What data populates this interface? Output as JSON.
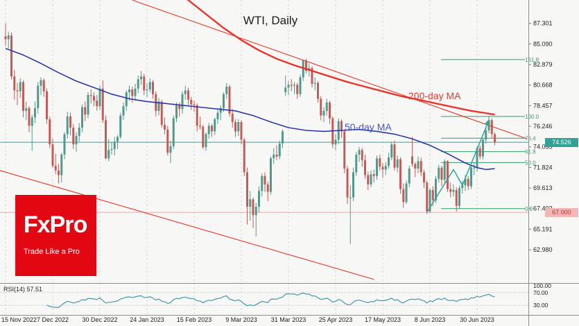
{
  "title": "WTI, Daily",
  "labels": {
    "ma200": "200-day MA",
    "ma50": "50-day MA",
    "rsi": "RSI(14) 57.51"
  },
  "watermark": {
    "brand": "FxPro",
    "tagline": "Trade Like a Pro"
  },
  "badges": {
    "current_price": "74.526",
    "support_price": "67.000"
  },
  "colors": {
    "background": "#f7f7f5",
    "grid": "#d8d8d8",
    "bull": "#4f9a8c",
    "bear": "#c65a57",
    "ma200": "#e8342a",
    "ma50": "#2c38a8",
    "ma50_label": "#4752c4",
    "fib": "#2f9f63",
    "trend": "#e8342a",
    "accent_teal": "#2aa79b",
    "support_line": "#f0a6a6",
    "rsi": "#4596a8",
    "brand_red": "#e30613",
    "axis_text": "#222222"
  },
  "chart_data": {
    "type": "candlestick",
    "title": "WTI, Daily",
    "symbol": "WTI",
    "timeframe": "Daily",
    "price_tick_labels": [
      "87.301",
      "85.090",
      "82.879",
      "80.668",
      "78.457",
      "76.246",
      "74.035",
      "71.824",
      "69.613",
      "67.402",
      "65.191",
      "62.980"
    ],
    "date_tick_labels": [
      "15 Nov 2022",
      "7 Dec 2022",
      "30 Dec 2022",
      "24 Jan 2023",
      "15 Feb 2023",
      "9 Mar 2023",
      "31 Mar 2023",
      "25 Apr 2023",
      "17 May 2023",
      "8 Jun 2023",
      "30 Jun 2023"
    ],
    "tick_indices": [
      0,
      16,
      32,
      48,
      64,
      80,
      96,
      112,
      128,
      144,
      160
    ],
    "price_range": [
      59.41,
      89.81
    ],
    "current_price": 74.526,
    "support_level": 67.0,
    "fib_levels": [
      {
        "label": "161.8",
        "price": 83.41
      },
      {
        "label": "100.0",
        "price": 77.3
      },
      {
        "label": "76.4",
        "price": 74.96
      },
      {
        "label": "61.8",
        "price": 73.52
      },
      {
        "label": "50.0",
        "price": 72.35
      },
      {
        "label": "0.0",
        "price": 67.4
      }
    ],
    "trendlines": [
      {
        "from": [
          43,
          89.8
        ],
        "to": [
          177,
          74.9
        ]
      },
      {
        "from": [
          -2,
          71.5
        ],
        "to": [
          125,
          59.8
        ]
      }
    ],
    "impulse_line": [
      [
        143,
        67.0
      ],
      [
        152,
        71.6
      ],
      [
        155,
        69.9
      ],
      [
        164,
        76.9
      ]
    ],
    "ma200": [
      [
        56,
        91.2
      ],
      [
        62,
        89.8
      ],
      [
        68,
        88.3
      ],
      [
        74,
        86.8
      ],
      [
        80,
        85.5
      ],
      [
        86,
        84.4
      ],
      [
        92,
        83.5
      ],
      [
        98,
        82.8
      ],
      [
        104,
        82.2
      ],
      [
        110,
        81.6
      ],
      [
        116,
        81.0
      ],
      [
        122,
        80.5
      ],
      [
        128,
        80.0
      ],
      [
        134,
        79.5
      ],
      [
        140,
        79.1
      ],
      [
        146,
        78.7
      ],
      [
        152,
        78.3
      ],
      [
        158,
        77.9
      ],
      [
        162,
        77.7
      ],
      [
        166,
        77.5
      ]
    ],
    "ma50": [
      [
        0,
        84.6
      ],
      [
        6,
        83.9
      ],
      [
        12,
        83.0
      ],
      [
        18,
        82.0
      ],
      [
        24,
        81.1
      ],
      [
        30,
        80.4
      ],
      [
        36,
        79.7
      ],
      [
        42,
        79.2
      ],
      [
        48,
        78.9
      ],
      [
        54,
        78.7
      ],
      [
        60,
        78.5
      ],
      [
        66,
        78.3
      ],
      [
        72,
        78.1
      ],
      [
        78,
        77.9
      ],
      [
        84,
        77.4
      ],
      [
        90,
        76.7
      ],
      [
        96,
        76.1
      ],
      [
        102,
        75.8
      ],
      [
        108,
        75.7
      ],
      [
        114,
        75.8
      ],
      [
        120,
        75.9
      ],
      [
        126,
        75.7
      ],
      [
        132,
        75.4
      ],
      [
        138,
        74.9
      ],
      [
        144,
        74.2
      ],
      [
        150,
        73.3
      ],
      [
        156,
        72.3
      ],
      [
        160,
        71.8
      ],
      [
        163,
        71.6
      ],
      [
        166,
        71.7
      ]
    ],
    "rsi": {
      "indicator": "RSI(14)",
      "value": 57.51,
      "levels": [
        70,
        30
      ],
      "axis_labels": [
        "100.00",
        "70.00",
        "30.00"
      ]
    },
    "candles": [
      [
        85.9,
        87.3,
        84.9,
        85.6
      ],
      [
        85.6,
        86.4,
        84.6,
        86.0
      ],
      [
        86.0,
        86.3,
        81.3,
        81.6
      ],
      [
        81.6,
        82.3,
        79.1,
        80.1
      ],
      [
        80.1,
        80.9,
        78.5,
        80.0
      ],
      [
        80.0,
        81.4,
        79.3,
        81.0
      ],
      [
        81.0,
        81.2,
        77.2,
        77.9
      ],
      [
        77.9,
        78.9,
        76.9,
        78.2
      ],
      [
        78.2,
        78.4,
        75.6,
        76.3
      ],
      [
        76.3,
        77.5,
        73.6,
        77.2
      ],
      [
        77.2,
        78.9,
        76.6,
        78.2
      ],
      [
        78.2,
        81.0,
        77.6,
        80.6
      ],
      [
        80.6,
        81.5,
        79.6,
        81.2
      ],
      [
        81.2,
        81.4,
        79.4,
        80.0
      ],
      [
        80.0,
        80.3,
        76.5,
        77.0
      ],
      [
        77.0,
        77.3,
        73.9,
        74.3
      ],
      [
        74.3,
        74.9,
        71.8,
        72.0
      ],
      [
        72.0,
        73.3,
        71.1,
        71.5
      ],
      [
        71.5,
        72.2,
        70.1,
        71.0
      ],
      [
        71.0,
        73.4,
        70.2,
        73.2
      ],
      [
        73.2,
        75.6,
        72.7,
        75.4
      ],
      [
        75.4,
        77.8,
        74.9,
        77.3
      ],
      [
        77.3,
        77.7,
        75.3,
        76.1
      ],
      [
        76.1,
        76.5,
        73.8,
        74.3
      ],
      [
        74.3,
        75.6,
        73.5,
        75.2
      ],
      [
        75.2,
        76.6,
        74.6,
        76.1
      ],
      [
        76.1,
        78.6,
        75.6,
        78.3
      ],
      [
        78.3,
        78.9,
        76.8,
        77.5
      ],
      [
        77.5,
        79.9,
        77.1,
        79.6
      ],
      [
        79.6,
        80.2,
        78.7,
        79.5
      ],
      [
        79.5,
        79.9,
        78.4,
        79.0
      ],
      [
        79.0,
        79.6,
        77.9,
        78.4
      ],
      [
        78.4,
        80.6,
        78.0,
        80.3
      ],
      [
        80.3,
        81.2,
        76.6,
        76.9
      ],
      [
        76.9,
        77.4,
        72.7,
        72.8
      ],
      [
        72.8,
        74.9,
        72.5,
        73.7
      ],
      [
        73.7,
        74.6,
        73.2,
        73.8
      ],
      [
        73.8,
        75.1,
        73.1,
        74.6
      ],
      [
        74.6,
        75.3,
        73.8,
        75.1
      ],
      [
        75.1,
        77.7,
        74.9,
        77.4
      ],
      [
        77.4,
        78.8,
        76.9,
        78.4
      ],
      [
        78.4,
        80.1,
        77.9,
        79.9
      ],
      [
        79.9,
        80.6,
        79.0,
        80.2
      ],
      [
        80.2,
        80.5,
        78.8,
        79.5
      ],
      [
        79.5,
        80.8,
        79.0,
        80.3
      ],
      [
        80.3,
        81.7,
        79.8,
        81.3
      ],
      [
        81.3,
        82.2,
        80.7,
        81.6
      ],
      [
        81.6,
        81.9,
        79.6,
        80.1
      ],
      [
        80.1,
        80.9,
        79.4,
        80.2
      ],
      [
        80.2,
        81.4,
        79.9,
        81.0
      ],
      [
        81.0,
        81.2,
        79.2,
        79.7
      ],
      [
        79.7,
        80.0,
        77.3,
        77.9
      ],
      [
        77.9,
        79.3,
        77.4,
        78.9
      ],
      [
        78.9,
        79.1,
        76.1,
        76.4
      ],
      [
        76.4,
        77.2,
        75.4,
        75.9
      ],
      [
        75.9,
        76.3,
        73.1,
        73.4
      ],
      [
        73.4,
        74.7,
        72.3,
        74.1
      ],
      [
        74.1,
        77.4,
        73.8,
        77.1
      ],
      [
        77.1,
        78.8,
        76.7,
        78.5
      ],
      [
        78.5,
        78.8,
        77.3,
        78.1
      ],
      [
        78.1,
        80.0,
        77.6,
        79.7
      ],
      [
        79.7,
        80.6,
        79.1,
        80.1
      ],
      [
        80.1,
        80.4,
        78.5,
        79.1
      ],
      [
        79.1,
        79.4,
        78.0,
        78.6
      ],
      [
        78.6,
        79.0,
        77.8,
        78.5
      ],
      [
        78.5,
        78.7,
        75.7,
        76.3
      ],
      [
        76.3,
        77.3,
        75.9,
        76.2
      ],
      [
        76.2,
        76.4,
        73.8,
        74.0
      ],
      [
        74.0,
        75.6,
        73.6,
        75.4
      ],
      [
        75.4,
        76.6,
        74.9,
        76.3
      ],
      [
        76.3,
        76.5,
        75.1,
        75.7
      ],
      [
        75.7,
        77.2,
        75.3,
        77.0
      ],
      [
        77.0,
        78.0,
        76.5,
        77.7
      ],
      [
        77.7,
        78.5,
        76.9,
        78.2
      ],
      [
        78.2,
        79.9,
        77.8,
        79.7
      ],
      [
        79.7,
        80.9,
        79.2,
        80.5
      ],
      [
        80.5,
        80.7,
        77.3,
        77.6
      ],
      [
        77.6,
        78.1,
        76.1,
        76.7
      ],
      [
        76.7,
        77.0,
        75.1,
        75.7
      ],
      [
        75.7,
        77.0,
        75.2,
        76.7
      ],
      [
        76.7,
        76.9,
        74.3,
        74.8
      ],
      [
        74.8,
        75.0,
        70.9,
        71.3
      ],
      [
        71.3,
        71.8,
        65.7,
        67.6
      ],
      [
        67.6,
        69.3,
        66.1,
        68.4
      ],
      [
        68.4,
        68.6,
        65.3,
        66.7
      ],
      [
        66.7,
        68.0,
        64.4,
        67.6
      ],
      [
        67.6,
        69.8,
        67.0,
        69.3
      ],
      [
        69.3,
        71.2,
        68.7,
        70.9
      ],
      [
        70.9,
        71.3,
        69.2,
        70.0
      ],
      [
        70.0,
        70.3,
        68.2,
        69.2
      ],
      [
        69.2,
        73.0,
        68.9,
        72.8
      ],
      [
        72.8,
        73.9,
        72.2,
        73.2
      ],
      [
        73.2,
        74.2,
        72.6,
        73.0
      ],
      [
        73.0,
        74.7,
        72.7,
        74.4
      ],
      [
        74.4,
        75.9,
        73.9,
        75.7
      ],
      [
        79.9,
        81.7,
        79.5,
        80.4
      ],
      [
        80.4,
        81.1,
        79.6,
        80.7
      ],
      [
        80.7,
        81.3,
        80.0,
        80.6
      ],
      [
        80.6,
        81.0,
        79.7,
        80.7
      ],
      [
        80.7,
        80.9,
        79.2,
        79.7
      ],
      [
        79.7,
        81.8,
        79.4,
        81.5
      ],
      [
        81.5,
        83.4,
        81.1,
        83.3
      ],
      [
        83.3,
        83.5,
        81.9,
        82.2
      ],
      [
        82.2,
        83.0,
        81.6,
        82.5
      ],
      [
        82.5,
        82.7,
        80.4,
        80.8
      ],
      [
        80.8,
        81.5,
        80.1,
        80.9
      ],
      [
        80.9,
        81.1,
        78.8,
        79.2
      ],
      [
        79.2,
        79.5,
        76.9,
        77.4
      ],
      [
        77.4,
        78.3,
        76.7,
        77.9
      ],
      [
        77.9,
        79.2,
        77.4,
        78.8
      ],
      [
        78.8,
        79.0,
        76.5,
        77.1
      ],
      [
        77.1,
        77.3,
        73.9,
        74.3
      ],
      [
        74.3,
        75.4,
        73.7,
        74.8
      ],
      [
        74.8,
        77.1,
        74.3,
        76.8
      ],
      [
        76.8,
        77.0,
        75.0,
        75.7
      ],
      [
        75.7,
        75.9,
        71.2,
        71.7
      ],
      [
        71.7,
        72.0,
        67.9,
        68.6
      ],
      [
        68.6,
        69.9,
        63.6,
        68.6
      ],
      [
        68.6,
        71.8,
        68.2,
        71.3
      ],
      [
        71.3,
        73.5,
        70.9,
        73.2
      ],
      [
        73.2,
        74.0,
        72.4,
        73.7
      ],
      [
        73.7,
        73.9,
        71.9,
        72.6
      ],
      [
        72.6,
        73.2,
        70.6,
        71.0
      ],
      [
        71.0,
        71.4,
        69.4,
        70.0
      ],
      [
        70.0,
        71.5,
        69.7,
        71.1
      ],
      [
        71.1,
        71.6,
        70.2,
        70.9
      ],
      [
        70.9,
        73.1,
        70.5,
        72.8
      ],
      [
        72.8,
        73.2,
        71.5,
        71.9
      ],
      [
        71.9,
        72.3,
        70.7,
        71.6
      ],
      [
        71.6,
        72.4,
        71.0,
        72.0
      ],
      [
        72.0,
        73.4,
        71.7,
        72.9
      ],
      [
        72.9,
        74.6,
        72.6,
        74.3
      ],
      [
        74.3,
        74.7,
        71.5,
        71.8
      ],
      [
        71.8,
        73.1,
        71.3,
        72.7
      ],
      [
        72.7,
        72.9,
        69.0,
        69.5
      ],
      [
        69.5,
        70.1,
        67.5,
        68.1
      ],
      [
        68.1,
        70.4,
        67.9,
        70.1
      ],
      [
        70.1,
        72.0,
        69.7,
        71.7
      ],
      [
        73.0,
        75.1,
        71.9,
        72.2
      ],
      [
        72.2,
        72.4,
        70.8,
        71.7
      ],
      [
        71.7,
        73.0,
        71.2,
        72.5
      ],
      [
        72.5,
        72.9,
        70.9,
        71.3
      ],
      [
        71.3,
        71.6,
        69.6,
        70.2
      ],
      [
        70.2,
        70.4,
        66.8,
        67.1
      ],
      [
        67.1,
        69.6,
        66.9,
        69.4
      ],
      [
        69.4,
        69.8,
        67.7,
        68.3
      ],
      [
        68.3,
        70.9,
        68.0,
        70.6
      ],
      [
        70.6,
        72.1,
        70.2,
        71.8
      ],
      [
        71.8,
        72.0,
        69.8,
        70.5
      ],
      [
        70.5,
        72.7,
        70.1,
        72.5
      ],
      [
        72.5,
        72.6,
        69.2,
        69.5
      ],
      [
        69.5,
        70.2,
        68.6,
        69.2
      ],
      [
        69.2,
        70.0,
        68.7,
        69.4
      ],
      [
        69.4,
        69.7,
        67.1,
        67.7
      ],
      [
        67.7,
        69.9,
        67.4,
        69.6
      ],
      [
        69.6,
        70.4,
        69.0,
        69.9
      ],
      [
        69.9,
        71.0,
        69.3,
        70.6
      ],
      [
        70.6,
        70.9,
        69.4,
        69.8
      ],
      [
        69.8,
        72.0,
        69.5,
        71.8
      ],
      [
        71.8,
        72.3,
        71.0,
        71.8
      ],
      [
        71.8,
        74.1,
        71.4,
        73.9
      ],
      [
        73.9,
        74.2,
        72.7,
        73.0
      ],
      [
        73.0,
        75.0,
        72.7,
        74.8
      ],
      [
        74.8,
        76.1,
        74.4,
        75.8
      ],
      [
        75.8,
        77.3,
        75.5,
        76.9
      ],
      [
        76.9,
        77.1,
        75.0,
        75.4
      ],
      [
        75.4,
        75.6,
        74.2,
        74.53
      ]
    ]
  }
}
